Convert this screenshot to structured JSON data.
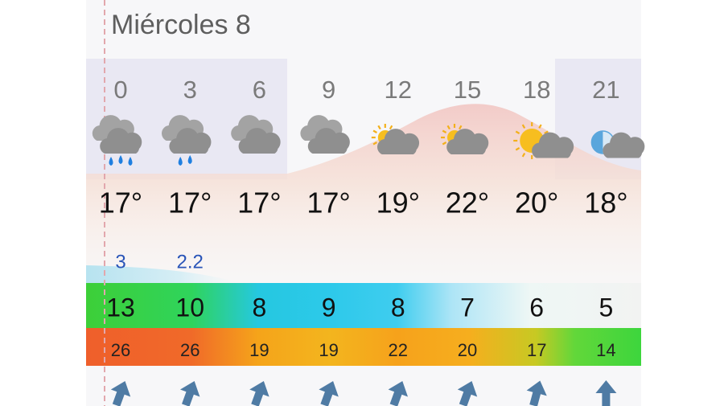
{
  "header": {
    "title": "Miércoles 8"
  },
  "hours": [
    0,
    3,
    6,
    9,
    12,
    15,
    18,
    21
  ],
  "temperatures": [
    "17°",
    "17°",
    "17°",
    "17°",
    "19°",
    "22°",
    "20°",
    "18°"
  ],
  "precipitation": [
    3,
    2.2
  ],
  "wind": [
    13,
    10,
    8,
    9,
    8,
    7,
    6,
    5
  ],
  "gusts": [
    26,
    26,
    19,
    19,
    22,
    20,
    17,
    14
  ]
}
